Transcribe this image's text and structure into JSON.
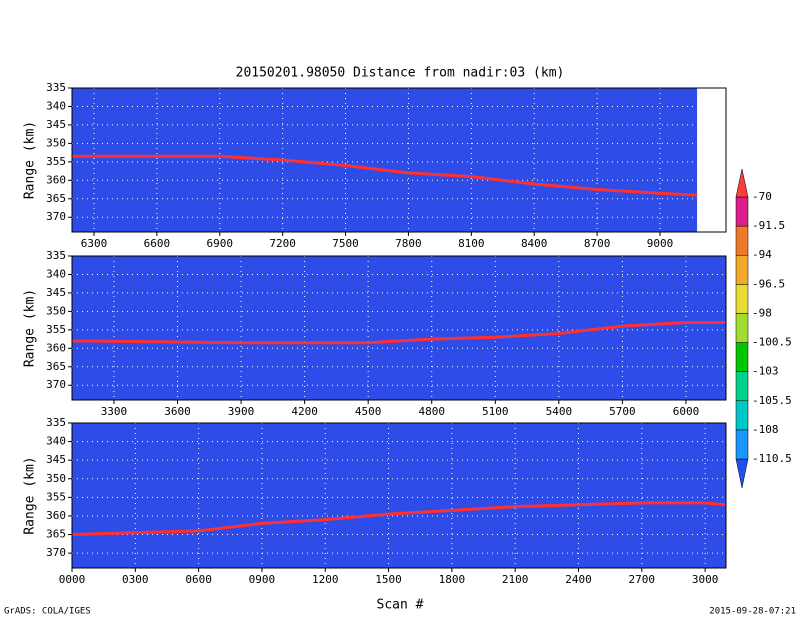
{
  "chart_data": [
    {
      "type": "line",
      "title": "20150201.98050    Distance from nadir:03 (km)",
      "ylabel": "Range (km)",
      "xlim": [
        6195,
        9315
      ],
      "xticks": [
        6300,
        6600,
        6900,
        7200,
        7500,
        7800,
        8100,
        8400,
        8700,
        9000
      ],
      "ylim": [
        374,
        335
      ],
      "yticks": [
        335,
        340,
        345,
        350,
        355,
        360,
        365,
        370
      ],
      "x": [
        6195,
        6600,
        6900,
        7200,
        7500,
        7800,
        8100,
        8400,
        8700,
        9000,
        9177
      ],
      "values": [
        353.5,
        353.5,
        353.5,
        354.5,
        356,
        358,
        359,
        361,
        362.5,
        363.5,
        364
      ],
      "color": "#ff3030",
      "background": "#2e4ce8",
      "grid": true
    },
    {
      "type": "line",
      "ylabel": "Range (km)",
      "xlim": [
        3102,
        6189
      ],
      "xticks": [
        3300,
        3600,
        3900,
        4200,
        4500,
        4800,
        5100,
        5400,
        5700,
        6000
      ],
      "ylim": [
        374,
        335
      ],
      "yticks": [
        335,
        340,
        345,
        350,
        355,
        360,
        365,
        370
      ],
      "x": [
        3102,
        3600,
        3900,
        4200,
        4500,
        4800,
        5100,
        5400,
        5700,
        6000,
        6189
      ],
      "values": [
        358,
        358.3,
        358.5,
        358.5,
        358.5,
        357.5,
        357,
        356,
        354,
        353,
        353
      ],
      "color": "#ff3030",
      "background": "#2e4ce8",
      "grid": true
    },
    {
      "type": "line",
      "ylabel": "Range (km)",
      "xlabel": "Scan #",
      "xlim": [
        0,
        3099
      ],
      "xticks": [
        {
          "value": 0,
          "label": "0000"
        },
        {
          "value": 300,
          "label": "0300"
        },
        {
          "value": 600,
          "label": "0600"
        },
        {
          "value": 900,
          "label": "0900"
        },
        1200,
        1500,
        1800,
        2100,
        2400,
        2700,
        3000
      ],
      "ylim": [
        374,
        335
      ],
      "yticks": [
        335,
        340,
        345,
        350,
        355,
        360,
        365,
        370
      ],
      "x": [
        0,
        300,
        600,
        900,
        1200,
        1500,
        1800,
        2100,
        2400,
        2700,
        3000,
        3099
      ],
      "values": [
        365,
        364.5,
        364,
        362,
        361,
        359.5,
        358.5,
        357.5,
        357,
        356.5,
        356.5,
        357
      ],
      "color": "#ff3030",
      "background": "#2e4ce8",
      "grid": true
    }
  ],
  "colorbar": {
    "levels": [
      -110.5,
      -108,
      -105.5,
      -103,
      -100.5,
      -98,
      -96.5,
      -94,
      -91.5,
      -70
    ],
    "colors": [
      "#2050f0",
      "#1e96ff",
      "#00c8c8",
      "#00d28c",
      "#00c800",
      "#a0dc32",
      "#e6dc32",
      "#f0aa28",
      "#f07828",
      "#dc1e8c",
      "#fa3c3c"
    ]
  },
  "footer": {
    "left": "GrADS: COLA/IGES",
    "right": "2015-09-28-07:21"
  }
}
